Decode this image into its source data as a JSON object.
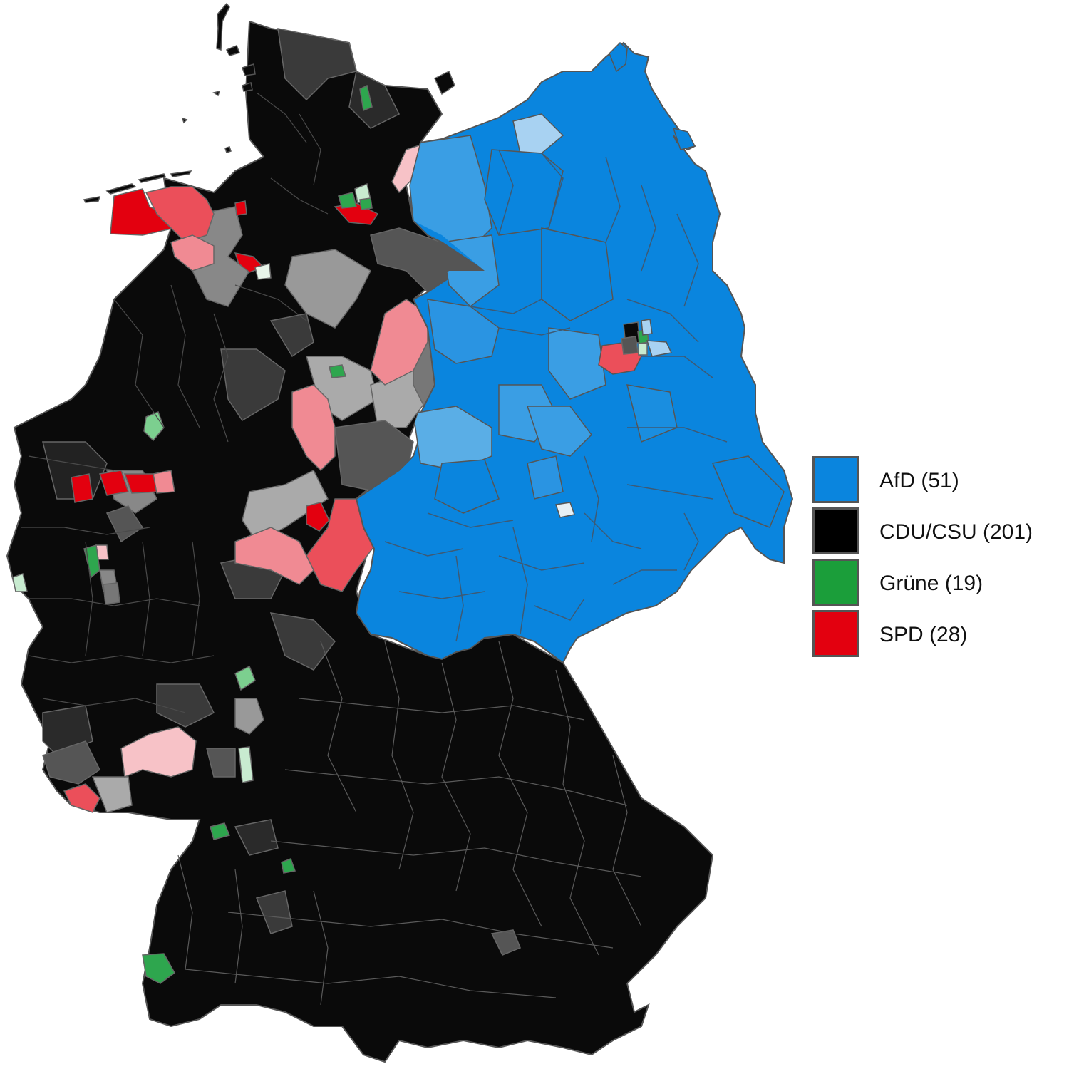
{
  "legend": [
    {
      "label": "AfD (51)",
      "color": "#0a85de"
    },
    {
      "label": "CDU/CSU (201)",
      "color": "#000000"
    },
    {
      "label": "Grüne (19)",
      "color": "#1b9e3a"
    },
    {
      "label": "SPD (28)",
      "color": "#e3000f"
    }
  ],
  "colors": {
    "afd": "#0a85de",
    "afd_light": "#3a9ee4",
    "afd_pale": "#a8d2f2",
    "cdu": "#0a0a0a",
    "cdu_dark_grey": "#3a3a3a",
    "cdu_grey": "#888888",
    "cdu_light_grey": "#b0b0b0",
    "gruene": "#2ea64e",
    "gruene_light": "#7ccf8f",
    "gruene_pale": "#c8ebd0",
    "spd": "#e3000f",
    "spd_mid": "#eb4f5a",
    "spd_light": "#f08a93",
    "spd_pale": "#f7c2c7",
    "border": "#555555"
  }
}
